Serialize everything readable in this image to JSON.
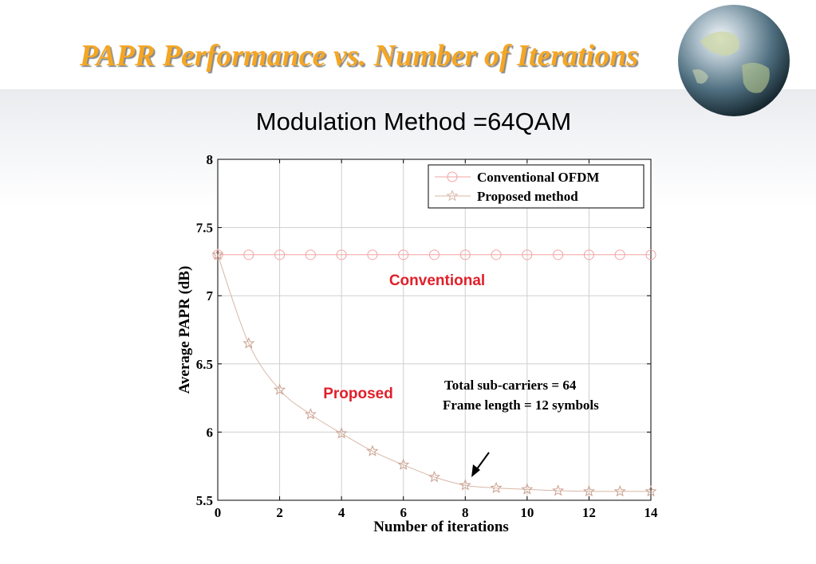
{
  "slide": {
    "title": "PAPR Performance vs. Number of Iterations",
    "subtitle": "Modulation Method =64QAM"
  },
  "colors": {
    "title": "#f5a623",
    "conventional_series": "#f2a3a3",
    "proposed_series": "#d8b7a7",
    "annotation_red": "#e0202a"
  },
  "chart_data": {
    "type": "line",
    "xlabel": "Number of iterations",
    "ylabel": "Average PAPR (dB)",
    "xlim": [
      0,
      14
    ],
    "ylim": [
      5.5,
      8
    ],
    "x_ticks": [
      0,
      2,
      4,
      6,
      8,
      10,
      12,
      14
    ],
    "y_ticks": [
      5.5,
      6,
      6.5,
      7,
      7.5,
      8
    ],
    "grid": true,
    "legend_position": "top-right",
    "x": [
      0,
      1,
      2,
      3,
      4,
      5,
      6,
      7,
      8,
      9,
      10,
      11,
      12,
      13,
      14
    ],
    "series": [
      {
        "name": "Conventional OFDM",
        "marker": "circle",
        "values": [
          7.3,
          7.3,
          7.3,
          7.3,
          7.3,
          7.3,
          7.3,
          7.3,
          7.3,
          7.3,
          7.3,
          7.3,
          7.3,
          7.3,
          7.3
        ]
      },
      {
        "name": "Proposed method",
        "marker": "star",
        "values": [
          7.3,
          6.65,
          6.31,
          6.13,
          5.99,
          5.86,
          5.76,
          5.67,
          5.61,
          5.59,
          5.58,
          5.57,
          5.565,
          5.565,
          5.565
        ]
      }
    ],
    "annotations": {
      "conventional_label": "Conventional",
      "proposed_label": "Proposed",
      "info_line1": "Total sub-carriers = 64",
      "info_line2": "Frame length = 12 symbols",
      "arrow_at_x": 8
    }
  }
}
